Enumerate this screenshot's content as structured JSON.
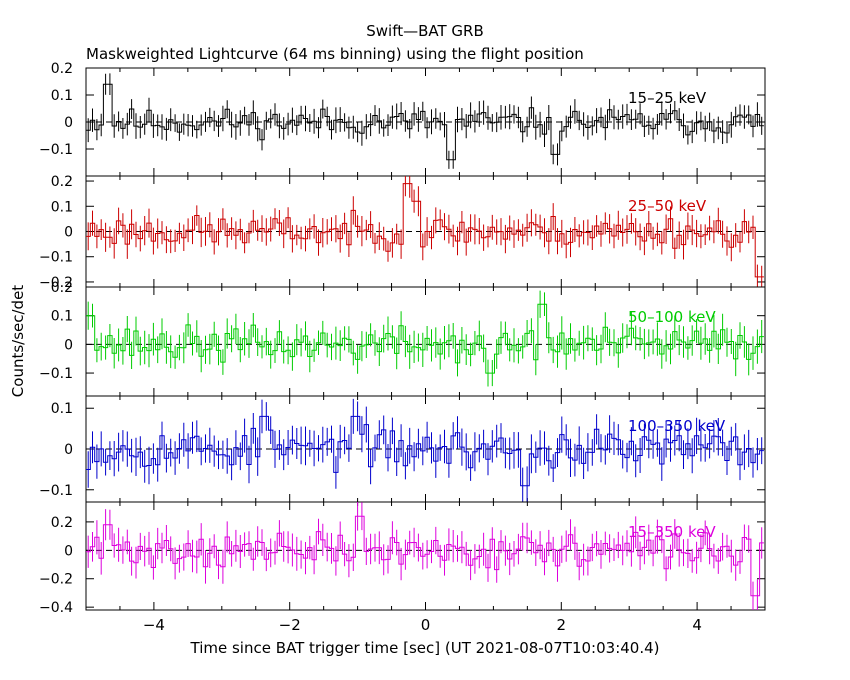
{
  "chart_data": {
    "type": "line",
    "title": "Swift—BAT GRB",
    "subtitle": "Maskweighted Lightcurve (64 ms binning) using the flight position",
    "xlabel": "Time since BAT trigger time [sec] (UT 2021-08-07T10:03:40.4)",
    "ylabel": "Counts/sec/det",
    "xlim": [
      -5,
      5
    ],
    "x_ticks": [
      -4,
      -2,
      0,
      2,
      4
    ],
    "x_tick_labels": [
      "−4",
      "−2",
      "0",
      "2",
      "4"
    ],
    "bin_width_sec": 0.064,
    "panels": [
      {
        "name": "15–25 keV",
        "color": "#000000",
        "ylim": [
          -0.2,
          0.2
        ],
        "y_ticks": [
          0.2,
          0.1,
          0,
          -0.1
        ],
        "y_tick_labels": [
          "0.2",
          "0.1",
          "0",
          "−0.1"
        ],
        "error": 0.04,
        "seed": 11,
        "spikes": [
          [
            -4.7,
            0.14
          ],
          [
            0.4,
            -0.14
          ],
          [
            1.9,
            -0.12
          ]
        ]
      },
      {
        "name": "25–50 keV",
        "color": "#cc0000",
        "ylim": [
          -0.22,
          0.22
        ],
        "y_ticks": [
          0.2,
          0.1,
          0,
          -0.1,
          -0.2
        ],
        "y_tick_labels": [
          "0.2",
          "0.1",
          "0",
          "−0.1",
          "−0.2"
        ],
        "error": 0.05,
        "seed": 23,
        "spikes": [
          [
            -0.25,
            0.19
          ],
          [
            -0.15,
            0.12
          ],
          [
            4.9,
            -0.18
          ]
        ]
      },
      {
        "name": "50–100 keV",
        "color": "#00cc00",
        "ylim": [
          -0.18,
          0.2
        ],
        "y_ticks": [
          0.2,
          0.1,
          0,
          -0.1
        ],
        "y_tick_labels": [
          "0.2",
          "0.1",
          "0",
          "−0.1"
        ],
        "error": 0.05,
        "seed": 37,
        "spikes": [
          [
            1.75,
            0.14
          ],
          [
            0.95,
            -0.1
          ],
          [
            -4.95,
            0.1
          ]
        ]
      },
      {
        "name": "100–350 keV",
        "color": "#0000cc",
        "ylim": [
          -0.13,
          0.13
        ],
        "y_ticks": [
          0.1,
          0,
          -0.1
        ],
        "y_tick_labels": [
          "0.1",
          "0",
          "−0.1"
        ],
        "error": 0.04,
        "seed": 53,
        "spikes": [
          [
            -2.35,
            0.08
          ],
          [
            -1.05,
            0.08
          ],
          [
            1.45,
            -0.09
          ]
        ]
      },
      {
        "name": "15–350 keV",
        "color": "#dd00dd",
        "ylim": [
          -0.42,
          0.34
        ],
        "y_ticks": [
          0.2,
          0,
          -0.2,
          -0.4
        ],
        "y_tick_labels": [
          "0.2",
          "0",
          "−0.2",
          "−0.4"
        ],
        "error": 0.1,
        "seed": 71,
        "spikes": [
          [
            -0.95,
            0.24
          ],
          [
            4.85,
            -0.32
          ],
          [
            -4.65,
            0.18
          ]
        ]
      }
    ]
  }
}
